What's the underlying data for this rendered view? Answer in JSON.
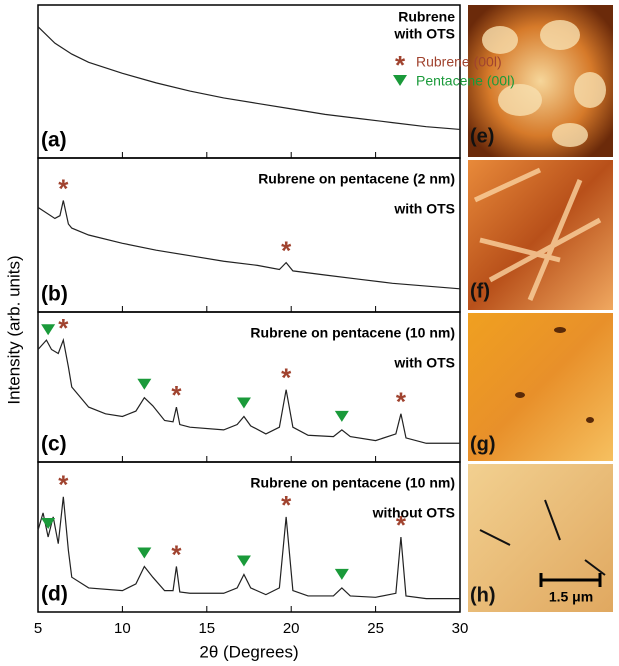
{
  "chart_data": [
    {
      "type": "line",
      "label": "(a)",
      "annotation": [
        "Rubrene",
        "with OTS"
      ],
      "color": "#222222",
      "xlim": [
        5,
        30
      ],
      "ylim": [
        0,
        100
      ],
      "xticks": [
        5,
        10,
        15,
        20,
        25,
        30
      ],
      "legend": [
        {
          "name": "Rubrene (00l)",
          "symbol": "*",
          "color": "#a0432f"
        },
        {
          "name": "Pentacene (00l)",
          "color": "#1a9a3a"
        }
      ],
      "x": [
        5,
        6,
        7,
        8,
        10,
        12,
        14,
        16,
        18,
        20,
        22,
        24,
        26,
        28,
        30
      ],
      "values": [
        90,
        78,
        70,
        64,
        56,
        49,
        43,
        38,
        34,
        30,
        26,
        23,
        20,
        17,
        15
      ],
      "rubrene_peaks": [],
      "pentacene_peaks": []
    },
    {
      "type": "line",
      "label": "(b)",
      "annotation": [
        "Rubrene on pentacene (2 nm)",
        "with OTS"
      ],
      "color": "#222222",
      "xlim": [
        5,
        30
      ],
      "ylim": [
        0,
        100
      ],
      "xticks": [
        5,
        10,
        15,
        20,
        25,
        30
      ],
      "x": [
        5,
        6,
        6.3,
        6.5,
        6.8,
        7,
        8,
        10,
        12,
        14,
        16,
        18,
        19.3,
        19.7,
        20.1,
        22,
        24,
        26,
        28,
        30
      ],
      "values": [
        70,
        62,
        64,
        75,
        58,
        55,
        50,
        44,
        39,
        35,
        31,
        28,
        25,
        30,
        24,
        21,
        18,
        15,
        13,
        11
      ],
      "rubrene_peaks": [
        6.5,
        19.7
      ],
      "pentacene_peaks": []
    },
    {
      "type": "line",
      "label": "(c)",
      "annotation": [
        "Rubrene on pentacene (10 nm)",
        "with OTS"
      ],
      "color": "#222222",
      "xlim": [
        5,
        30
      ],
      "ylim": [
        0,
        100
      ],
      "xticks": [
        5,
        10,
        15,
        20,
        25,
        30
      ],
      "x": [
        5,
        5.5,
        5.8,
        6.2,
        6.5,
        6.8,
        7,
        8,
        9,
        10,
        10.8,
        11.3,
        11.8,
        12.5,
        13,
        13.2,
        13.4,
        14,
        16,
        16.8,
        17.2,
        17.6,
        18.5,
        19.3,
        19.7,
        20.1,
        21,
        22.5,
        23,
        23.5,
        25,
        26.2,
        26.5,
        26.8,
        28,
        30
      ],
      "values": [
        78,
        85,
        78,
        75,
        85,
        65,
        50,
        35,
        30,
        28,
        32,
        42,
        36,
        25,
        24,
        35,
        22,
        20,
        18,
        22,
        28,
        21,
        15,
        20,
        48,
        20,
        14,
        13,
        18,
        13,
        10,
        15,
        30,
        12,
        8,
        8
      ],
      "rubrene_peaks": [
        6.5,
        13.2,
        19.7,
        26.5
      ],
      "pentacene_peaks": [
        5.6,
        11.3,
        17.2,
        23
      ]
    },
    {
      "type": "line",
      "label": "(d)",
      "annotation": [
        "Rubrene on pentacene (10 nm)",
        "without OTS"
      ],
      "color": "#222222",
      "xlim": [
        5,
        30
      ],
      "ylim": [
        0,
        100
      ],
      "xticks": [
        5,
        10,
        15,
        20,
        25,
        30
      ],
      "x_label": "2θ (Degrees)",
      "x": [
        5,
        5.3,
        5.6,
        5.9,
        6.2,
        6.5,
        6.8,
        7,
        8,
        10,
        10.8,
        11.3,
        11.8,
        12.5,
        13,
        13.2,
        13.4,
        14,
        16,
        16.8,
        17.2,
        17.6,
        18.5,
        19.3,
        19.7,
        20.1,
        21,
        22.5,
        23,
        23.5,
        25,
        26.2,
        26.5,
        26.8,
        28,
        30
      ],
      "values": [
        55,
        68,
        50,
        65,
        45,
        80,
        40,
        20,
        12,
        10,
        15,
        28,
        20,
        10,
        10,
        28,
        9,
        8,
        8,
        12,
        22,
        12,
        7,
        12,
        65,
        10,
        6,
        6,
        12,
        6,
        5,
        8,
        50,
        6,
        4,
        4
      ],
      "rubrene_peaks": [
        6.5,
        13.2,
        19.7,
        26.5
      ],
      "pentacene_peaks": [
        5.6,
        11.3,
        17.2,
        23
      ]
    }
  ],
  "y_label": "Intensity (arb. units)",
  "images": [
    {
      "label": "(e)"
    },
    {
      "label": "(f)"
    },
    {
      "label": "(g)"
    },
    {
      "label": "(h)",
      "scale_bar": "1.5 μm"
    }
  ]
}
